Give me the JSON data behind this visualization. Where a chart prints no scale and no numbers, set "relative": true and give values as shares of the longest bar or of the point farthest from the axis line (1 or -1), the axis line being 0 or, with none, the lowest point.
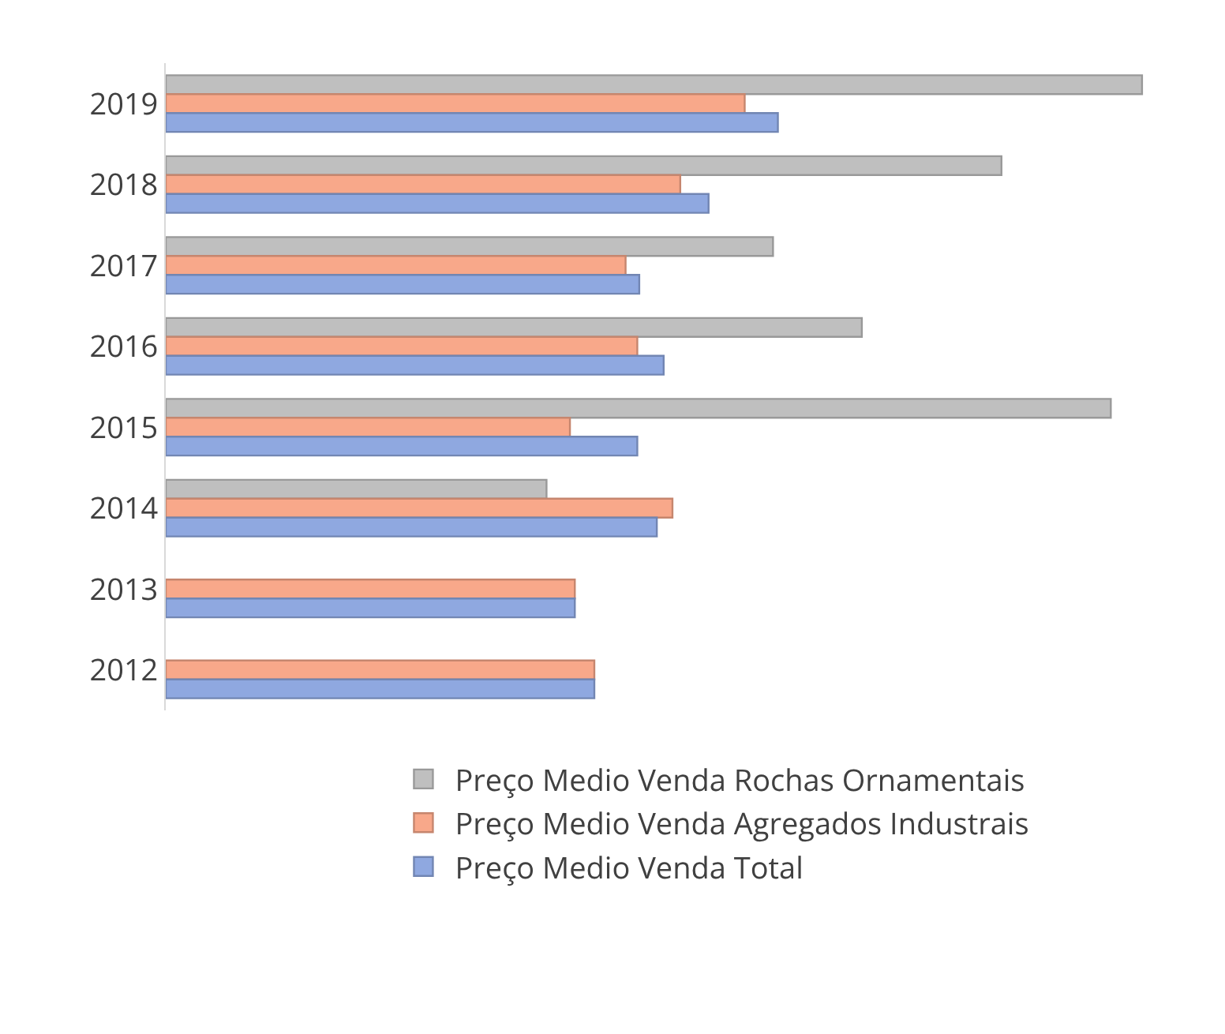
{
  "chart_data": {
    "type": "bar",
    "orientation": "horizontal",
    "relative": true,
    "categories": [
      "2019",
      "2018",
      "2017",
      "2016",
      "2015",
      "2014",
      "2013",
      "2012"
    ],
    "series": [
      {
        "name": "Preço Medio Venda Rochas Ornamentais",
        "color": "#bfbfbf",
        "values": [
          1,
          0.856,
          0.622,
          0.713,
          0.968,
          0.39,
          null,
          null
        ]
      },
      {
        "name": "Preço Medio Venda Agregados Industrais",
        "color": "#f8a88a",
        "values": [
          0.593,
          0.527,
          0.471,
          0.483,
          0.414,
          0.519,
          0.419,
          0.439
        ]
      },
      {
        "name": "Preço Medio Venda Total",
        "color": "#8fa8e0",
        "values": [
          0.627,
          0.556,
          0.485,
          0.51,
          0.483,
          0.503,
          0.419,
          0.439
        ]
      }
    ],
    "legend": "bottom"
  }
}
